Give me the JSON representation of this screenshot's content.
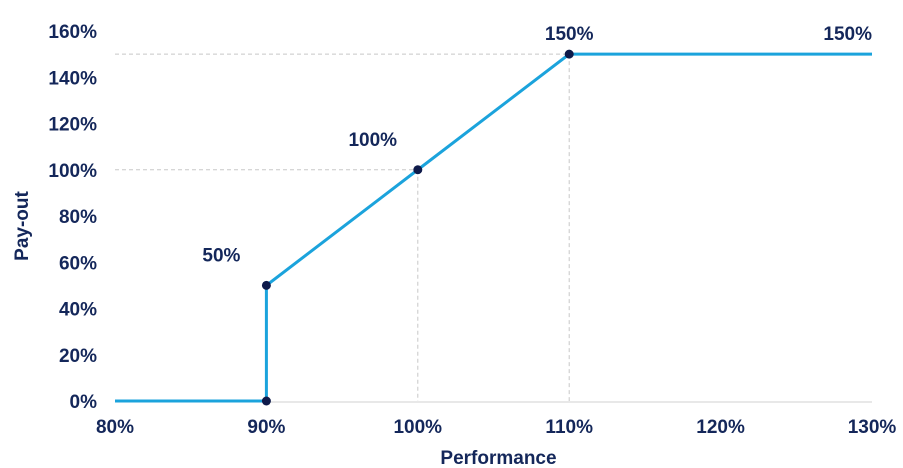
{
  "chart_data": {
    "type": "line",
    "xlabel": "Performance",
    "ylabel": "Pay-out",
    "xlim": [
      80,
      130
    ],
    "ylim": [
      0,
      160
    ],
    "x_ticks": [
      {
        "value": 80,
        "label": "80%"
      },
      {
        "value": 90,
        "label": "90%"
      },
      {
        "value": 100,
        "label": "100%"
      },
      {
        "value": 110,
        "label": "110%"
      },
      {
        "value": 120,
        "label": "120%"
      },
      {
        "value": 130,
        "label": "130%"
      }
    ],
    "y_ticks": [
      {
        "value": 0,
        "label": "0%"
      },
      {
        "value": 20,
        "label": "20%"
      },
      {
        "value": 40,
        "label": "40%"
      },
      {
        "value": 60,
        "label": "60%"
      },
      {
        "value": 80,
        "label": "80%"
      },
      {
        "value": 100,
        "label": "100%"
      },
      {
        "value": 120,
        "label": "120%"
      },
      {
        "value": 140,
        "label": "140%"
      },
      {
        "value": 150,
        "label": "150%"
      },
      {
        "value": 160,
        "label": "160%"
      }
    ],
    "series": [
      {
        "points": [
          {
            "x": 80,
            "y": 0
          },
          {
            "x": 90,
            "y": 0
          },
          {
            "x": 90,
            "y": 50
          },
          {
            "x": 100,
            "y": 100
          },
          {
            "x": 110,
            "y": 150
          },
          {
            "x": 130,
            "y": 150
          }
        ]
      }
    ],
    "markers": [
      {
        "x": 90,
        "y": 0
      },
      {
        "x": 90,
        "y": 50
      },
      {
        "x": 100,
        "y": 100
      },
      {
        "x": 110,
        "y": 150
      }
    ],
    "data_labels": [
      {
        "x": 90,
        "y": 50,
        "label": "50%"
      },
      {
        "x": 100,
        "y": 100,
        "label": "100%"
      },
      {
        "x": 110,
        "y": 150,
        "label": "150%"
      },
      {
        "x": 130,
        "y": 150,
        "label": "150%"
      }
    ],
    "reference_lines": [
      {
        "x": 100,
        "y": 100
      },
      {
        "x": 110,
        "y": 150
      }
    ],
    "grid": false,
    "colors": {
      "line": "#1ba3dc",
      "marker": "#0e1a4a",
      "text": "#14275a",
      "reference": "#c8c8c8",
      "axis": "#d0d0d0"
    }
  }
}
